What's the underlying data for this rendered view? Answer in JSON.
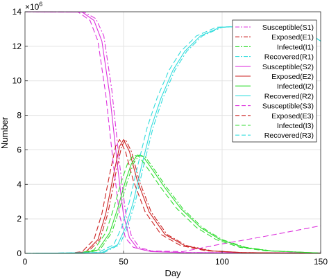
{
  "chart_data": {
    "type": "line",
    "xlabel": "Day",
    "ylabel": "Number",
    "y_exponent_base": "×10",
    "y_exponent_power": "6",
    "xlim": [
      0,
      150
    ],
    "ylim": [
      0,
      14
    ],
    "x_ticks": [
      0,
      50,
      100,
      150
    ],
    "y_ticks": [
      0,
      2,
      4,
      6,
      8,
      10,
      12,
      14
    ],
    "grid": true,
    "legend_position": "top-right",
    "series": [
      {
        "name": "Susceptible(S1)",
        "color": "#dd33dd",
        "dash": "dashdot",
        "points": [
          [
            0,
            14
          ],
          [
            30,
            13.98
          ],
          [
            36,
            13.6
          ],
          [
            40,
            12.6
          ],
          [
            44,
            9.5
          ],
          [
            48,
            5.2
          ],
          [
            51,
            2.4
          ],
          [
            54,
            1.0
          ],
          [
            58,
            0.35
          ],
          [
            65,
            0.12
          ],
          [
            80,
            0.05
          ],
          [
            150,
            0.03
          ]
        ]
      },
      {
        "name": "Exposed(E1)",
        "color": "#cc2222",
        "dash": "dashdot",
        "points": [
          [
            0,
            0
          ],
          [
            25,
            0
          ],
          [
            32,
            0.1
          ],
          [
            38,
            0.8
          ],
          [
            42,
            2.3
          ],
          [
            46,
            4.6
          ],
          [
            49,
            6.2
          ],
          [
            51,
            6.6
          ],
          [
            54,
            5.9
          ],
          [
            58,
            4.2
          ],
          [
            64,
            2.4
          ],
          [
            72,
            1.1
          ],
          [
            82,
            0.45
          ],
          [
            95,
            0.15
          ],
          [
            110,
            0.05
          ],
          [
            150,
            0
          ]
        ]
      },
      {
        "name": "Infected(I1)",
        "color": "#33dd33",
        "dash": "dashdot",
        "points": [
          [
            0,
            0
          ],
          [
            30,
            0.01
          ],
          [
            38,
            0.2
          ],
          [
            44,
            1.2
          ],
          [
            48,
            2.6
          ],
          [
            52,
            4.2
          ],
          [
            55,
            5.2
          ],
          [
            58,
            5.7
          ],
          [
            61,
            5.6
          ],
          [
            66,
            4.8
          ],
          [
            72,
            3.8
          ],
          [
            80,
            2.6
          ],
          [
            90,
            1.5
          ],
          [
            100,
            0.8
          ],
          [
            112,
            0.35
          ],
          [
            125,
            0.15
          ],
          [
            150,
            0.02
          ]
        ]
      },
      {
        "name": "Recovered(R1)",
        "color": "#33dddd",
        "dash": "dashdot",
        "points": [
          [
            0,
            0
          ],
          [
            40,
            0.05
          ],
          [
            48,
            0.5
          ],
          [
            52,
            1.5
          ],
          [
            56,
            3.0
          ],
          [
            60,
            5.0
          ],
          [
            65,
            7.3
          ],
          [
            70,
            9.0
          ],
          [
            76,
            10.6
          ],
          [
            82,
            11.7
          ],
          [
            90,
            12.6
          ],
          [
            100,
            13.1
          ],
          [
            120,
            13.2
          ],
          [
            140,
            13.1
          ],
          [
            150,
            12.3
          ]
        ]
      },
      {
        "name": "Susceptible(S2)",
        "color": "#dd33dd",
        "dash": "solid",
        "points": [
          [
            0,
            14
          ],
          [
            29,
            13.98
          ],
          [
            35,
            13.5
          ],
          [
            39,
            12.3
          ],
          [
            43,
            9.2
          ],
          [
            47,
            5.0
          ],
          [
            50,
            2.2
          ],
          [
            53,
            0.9
          ],
          [
            57,
            0.3
          ],
          [
            64,
            0.1
          ],
          [
            80,
            0.05
          ],
          [
            150,
            0.03
          ]
        ]
      },
      {
        "name": "Exposed(E2)",
        "color": "#cc2222",
        "dash": "solid",
        "points": [
          [
            0,
            0
          ],
          [
            24,
            0
          ],
          [
            31,
            0.1
          ],
          [
            37,
            0.8
          ],
          [
            41,
            2.3
          ],
          [
            45,
            4.6
          ],
          [
            48,
            6.2
          ],
          [
            50,
            6.6
          ],
          [
            53,
            5.9
          ],
          [
            57,
            4.2
          ],
          [
            63,
            2.4
          ],
          [
            71,
            1.1
          ],
          [
            81,
            0.45
          ],
          [
            94,
            0.15
          ],
          [
            110,
            0.05
          ],
          [
            150,
            0
          ]
        ]
      },
      {
        "name": "Infected(I2)",
        "color": "#33dd33",
        "dash": "solid",
        "points": [
          [
            0,
            0
          ],
          [
            29,
            0.01
          ],
          [
            37,
            0.2
          ],
          [
            43,
            1.2
          ],
          [
            47,
            2.6
          ],
          [
            51,
            4.2
          ],
          [
            54,
            5.2
          ],
          [
            57,
            5.7
          ],
          [
            60,
            5.6
          ],
          [
            65,
            4.8
          ],
          [
            71,
            3.8
          ],
          [
            79,
            2.6
          ],
          [
            89,
            1.5
          ],
          [
            99,
            0.8
          ],
          [
            111,
            0.35
          ],
          [
            124,
            0.15
          ],
          [
            150,
            0.02
          ]
        ]
      },
      {
        "name": "Recovered(R2)",
        "color": "#33dddd",
        "dash": "solid",
        "points": [
          [
            0,
            0
          ],
          [
            39,
            0.05
          ],
          [
            47,
            0.5
          ],
          [
            51,
            1.5
          ],
          [
            55,
            3.0
          ],
          [
            59,
            5.0
          ],
          [
            64,
            7.3
          ],
          [
            69,
            9.0
          ],
          [
            75,
            10.6
          ],
          [
            81,
            11.7
          ],
          [
            89,
            12.6
          ],
          [
            99,
            13.1
          ],
          [
            120,
            13.2
          ],
          [
            140,
            13.1
          ],
          [
            150,
            12.3
          ]
        ]
      },
      {
        "name": "Susceptible(S3)",
        "color": "#dd33dd",
        "dash": "dashed",
        "points": [
          [
            0,
            14
          ],
          [
            27,
            13.98
          ],
          [
            33,
            13.5
          ],
          [
            37,
            12.3
          ],
          [
            41,
            9.2
          ],
          [
            45,
            5.0
          ],
          [
            48,
            2.2
          ],
          [
            51,
            0.9
          ],
          [
            55,
            0.35
          ],
          [
            62,
            0.15
          ],
          [
            80,
            0.1
          ],
          [
            100,
            0.55
          ],
          [
            120,
            0.95
          ],
          [
            150,
            1.6
          ]
        ]
      },
      {
        "name": "Exposed(E3)",
        "color": "#cc2222",
        "dash": "dashed",
        "points": [
          [
            0,
            0
          ],
          [
            22,
            0
          ],
          [
            29,
            0.1
          ],
          [
            35,
            0.8
          ],
          [
            39,
            2.3
          ],
          [
            43,
            4.6
          ],
          [
            46,
            6.2
          ],
          [
            48,
            6.6
          ],
          [
            51,
            5.9
          ],
          [
            55,
            4.2
          ],
          [
            61,
            2.4
          ],
          [
            69,
            1.1
          ],
          [
            79,
            0.45
          ],
          [
            92,
            0.15
          ],
          [
            110,
            0.05
          ],
          [
            150,
            0
          ]
        ]
      },
      {
        "name": "Infected(I3)",
        "color": "#33dd33",
        "dash": "dashed",
        "points": [
          [
            0,
            0
          ],
          [
            27,
            0.01
          ],
          [
            35,
            0.2
          ],
          [
            41,
            1.2
          ],
          [
            45,
            2.6
          ],
          [
            49,
            4.2
          ],
          [
            52,
            5.2
          ],
          [
            55,
            5.7
          ],
          [
            58,
            5.6
          ],
          [
            63,
            4.8
          ],
          [
            69,
            3.8
          ],
          [
            77,
            2.6
          ],
          [
            87,
            1.5
          ],
          [
            97,
            0.8
          ],
          [
            109,
            0.35
          ],
          [
            122,
            0.15
          ],
          [
            150,
            0.02
          ]
        ]
      },
      {
        "name": "Recovered(R3)",
        "color": "#33dddd",
        "dash": "dashed",
        "points": [
          [
            0,
            0
          ],
          [
            37,
            0.05
          ],
          [
            45,
            0.5
          ],
          [
            49,
            1.5
          ],
          [
            53,
            3.0
          ],
          [
            57,
            5.0
          ],
          [
            62,
            7.3
          ],
          [
            67,
            9.0
          ],
          [
            73,
            10.6
          ],
          [
            79,
            11.7
          ],
          [
            87,
            12.6
          ],
          [
            97,
            13.1
          ],
          [
            118,
            13.2
          ],
          [
            140,
            13.0
          ],
          [
            150,
            12.3
          ]
        ]
      }
    ]
  }
}
